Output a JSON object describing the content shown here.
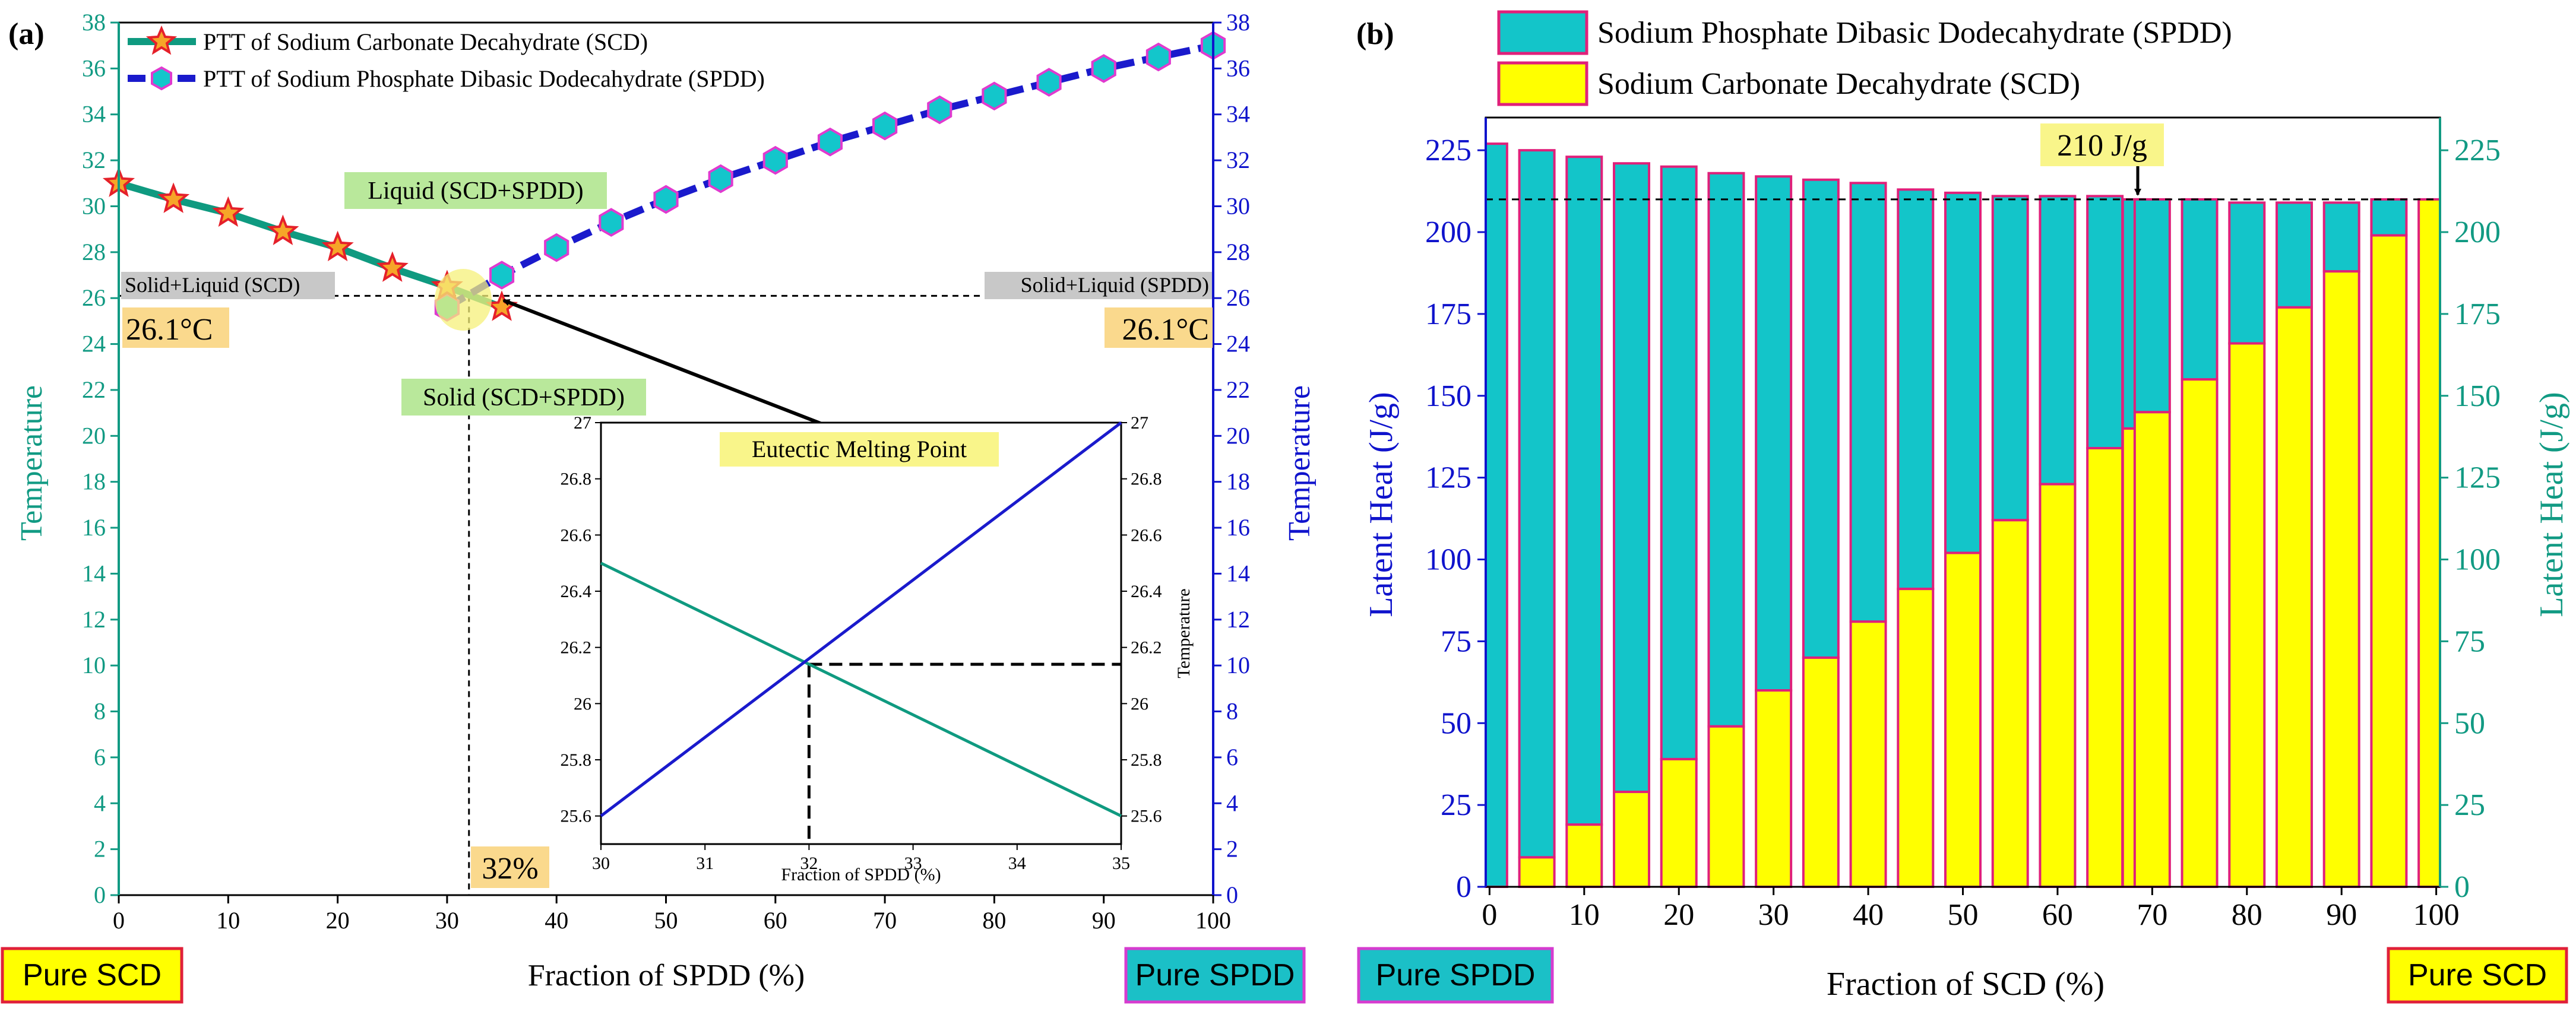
{
  "colors": {
    "green": "#119A83",
    "blue": "#0F13CC",
    "green_line": "#0F9A80",
    "blue_line": "#1A1ACC",
    "marker_star_fill": "#F6A528",
    "marker_star_stroke": "#E5202A",
    "marker_hex_fill": "#13C6CB",
    "marker_hex_stroke": "#E03ACF",
    "bar_cyan": "#13C5C9",
    "bar_yellow": "#FFFF00",
    "bar_edge": "#E0207A",
    "label_green_bg": "#B9E89B",
    "label_grey_bg": "#C8C8C8",
    "label_orange_bg": "#FAD98D",
    "label_yellow_bg": "#F9F58A",
    "box_cyan": "#1BC0C7",
    "box_yellow": "#FFFF00",
    "box_red_border": "#E0203A",
    "box_magenta_border": "#D63CCF"
  },
  "panel_a": {
    "tag": "(a)",
    "legend": [
      "PTT of Sodium Carbonate Decahydrate (SCD)",
      "PTT of Sodium Phosphate Dibasic Dodecahydrate (SPDD)"
    ],
    "region_labels": {
      "liquid": "Liquid (SCD+SPDD)",
      "solid": "Solid (SCD+SPDD)",
      "solid_liquid_scd": "Solid+Liquid (SCD)",
      "solid_liquid_spdd": "Solid+Liquid (SPDD)",
      "temp_left": "26.1°C",
      "temp_right": "26.1°C",
      "fraction": "32%",
      "eutectic": "Eutectic Melting Point"
    },
    "pure_left": "Pure SCD",
    "pure_right": "Pure SPDD"
  },
  "panel_b": {
    "tag": "(b)",
    "legend": [
      "Sodium Phosphate Dibasic Dodecahydrate (SPDD)",
      "Sodium Carbonate Decahydrate (SCD)"
    ],
    "annotation": "210 J/g",
    "pure_left": "Pure SPDD",
    "pure_right": "Pure SCD"
  },
  "chart_data": [
    {
      "type": "line",
      "title": "",
      "xlabel": "Fraction of SPDD (%)",
      "ylabel": "Temperature",
      "y2label": "Temperature",
      "xlim": [
        0,
        100
      ],
      "ylim": [
        0,
        38
      ],
      "xticks": [
        0,
        10,
        20,
        30,
        40,
        50,
        60,
        70,
        80,
        90,
        100
      ],
      "yticks": [
        0,
        2,
        4,
        6,
        8,
        10,
        12,
        14,
        16,
        18,
        20,
        22,
        24,
        26,
        28,
        30,
        32,
        34,
        36,
        38
      ],
      "series": [
        {
          "name": "PTT of Sodium Carbonate Decahydrate (SCD)",
          "marker": "star",
          "x": [
            0,
            5,
            10,
            15,
            20,
            25,
            30,
            35
          ],
          "y": [
            31.0,
            30.3,
            29.7,
            28.9,
            28.2,
            27.3,
            26.5,
            25.6
          ]
        },
        {
          "name": "PTT of Sodium Phosphate Dibasic Dodecahydrate (SPDD)",
          "marker": "hexagon",
          "x": [
            30,
            35,
            40,
            45,
            50,
            55,
            60,
            65,
            70,
            75,
            80,
            85,
            90,
            95,
            100
          ],
          "y": [
            25.6,
            27.0,
            28.2,
            29.3,
            30.3,
            31.2,
            32.0,
            32.8,
            33.5,
            34.2,
            34.8,
            35.4,
            36.0,
            36.5,
            37.0
          ]
        }
      ],
      "eutectic": {
        "x": 32,
        "y": 26.1
      }
    },
    {
      "type": "line",
      "title": "Eutectic Melting Point",
      "xlabel": "Fraction of SPDD (%)",
      "ylabel": "",
      "y2label": "Temperature",
      "xlim": [
        30,
        35
      ],
      "ylim": [
        25.5,
        27.0
      ],
      "xticks": [
        30,
        31,
        32,
        33,
        34,
        35
      ],
      "yticks": [
        25.6,
        25.8,
        26.0,
        26.2,
        26.4,
        26.6,
        26.8,
        27.0
      ],
      "ytick_labels": [
        "25.6",
        "25.8",
        "26",
        "26.2",
        "26.4",
        "26.6",
        "26.8",
        "27"
      ],
      "series": [
        {
          "name": "SCD",
          "x": [
            30,
            35
          ],
          "y": [
            26.5,
            25.6
          ]
        },
        {
          "name": "SPDD",
          "x": [
            30,
            35
          ],
          "y": [
            25.6,
            27.0
          ]
        }
      ],
      "crossing": {
        "x": 32,
        "y": 26.14
      }
    },
    {
      "type": "bar",
      "stacked": true,
      "title": "",
      "xlabel": "Fraction of SCD (%)",
      "ylabel": "Latent Heat (J/g)",
      "y2label": "Latent Heat (J/g)",
      "xlim": [
        0,
        100
      ],
      "ylim": [
        0,
        235
      ],
      "xticks": [
        0,
        10,
        20,
        30,
        40,
        50,
        60,
        70,
        80,
        90,
        100
      ],
      "yticks": [
        0,
        25,
        50,
        75,
        100,
        125,
        150,
        175,
        200,
        225
      ],
      "reference_line": 210,
      "categories": [
        0,
        5,
        10,
        15,
        20,
        25,
        30,
        35,
        40,
        45,
        50,
        55,
        60,
        65,
        68,
        70,
        75,
        80,
        85,
        90,
        95,
        100
      ],
      "series": [
        {
          "name": "Sodium Carbonate Decahydrate (SCD)",
          "values": [
            0,
            9,
            19,
            29,
            39,
            49,
            60,
            70,
            81,
            91,
            102,
            112,
            123,
            134,
            140,
            145,
            155,
            166,
            177,
            188,
            199,
            210
          ]
        },
        {
          "name": "Sodium Phosphate Dibasic Dodecahydrate (SPDD)",
          "values": [
            227,
            216,
            204,
            192,
            181,
            169,
            157,
            146,
            134,
            122,
            110,
            99,
            88,
            77,
            70,
            65,
            55,
            43,
            32,
            21,
            11,
            0
          ]
        }
      ]
    }
  ]
}
